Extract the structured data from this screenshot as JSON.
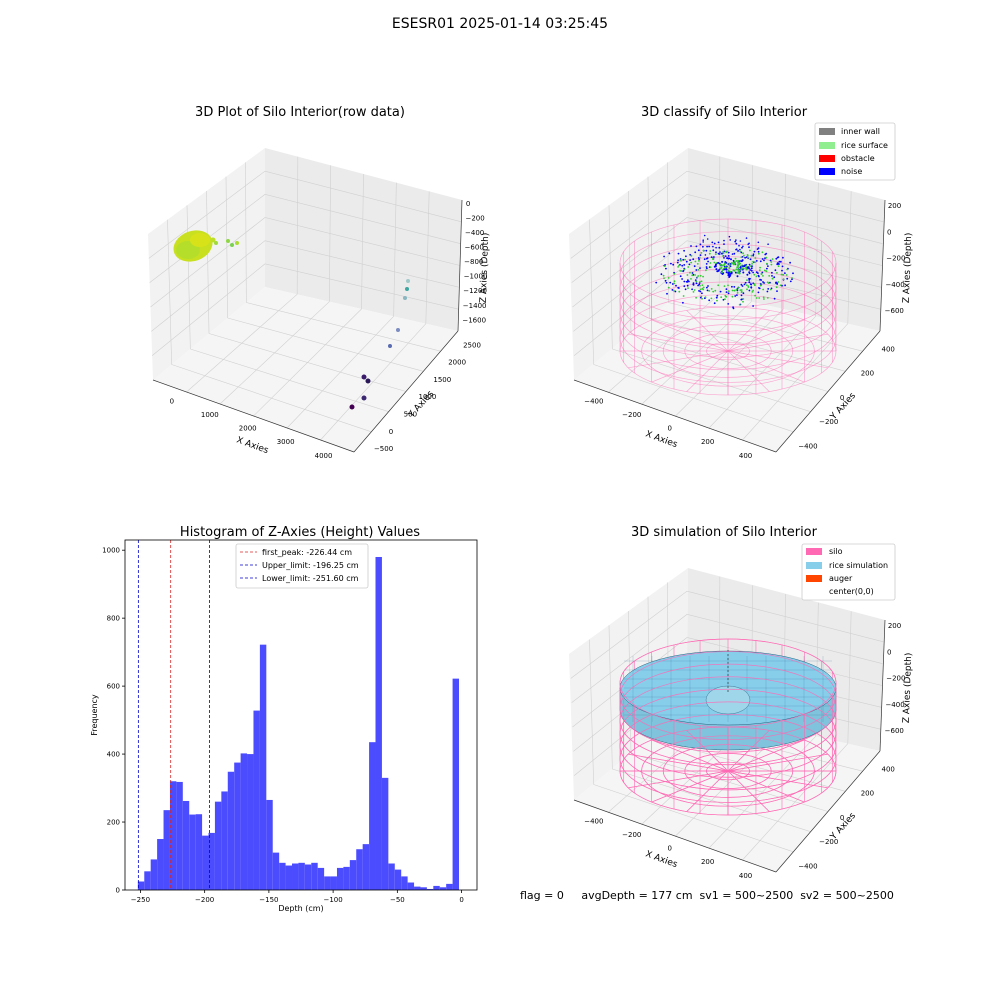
{
  "suptitle": "ESESR01 2025-01-14 03:25:45",
  "footer": "flag = 0     avgDepth = 177 cm  sv1 = 500~2500  sv2 = 500~2500",
  "colors": {
    "hist_bar": "#4c4cff",
    "first_peak": "#d62728",
    "limit": "#0000cc",
    "inner_wall": "#808080",
    "rice_surface": "#90ee90",
    "obstacle": "#ff0000",
    "noise": "#0000ff",
    "silo": "#ff69b4",
    "rice_simulation": "#87ceeb",
    "auger": "#ff4500"
  },
  "chart_data": [
    {
      "type": "scatter",
      "subtype": "3d",
      "title": "3D Plot of Silo Interior(row data)",
      "xlabel": "X Axies",
      "ylabel": "Y Axies",
      "zlabel": "Z Axies (Depth)",
      "x_ticks": [
        "0",
        "1000",
        "2000",
        "3000",
        "4000"
      ],
      "y_ticks": [
        "−500",
        "0",
        "500",
        "1000",
        "1500",
        "2000",
        "2500"
      ],
      "z_ticks": [
        "0",
        "−200",
        "−400",
        "−600",
        "−800",
        "−1000",
        "−1200",
        "−1400",
        "−1600"
      ],
      "colormap": "viridis"
    },
    {
      "type": "scatter",
      "subtype": "3d",
      "title": "3D classify of Silo Interior",
      "xlabel": "X Axies",
      "ylabel": "Y Axies",
      "zlabel": "Z Axies (Depth)",
      "x_ticks": [
        "−400",
        "−200",
        "0",
        "200",
        "400"
      ],
      "y_ticks": [
        "−400",
        "−200",
        "0",
        "200",
        "400"
      ],
      "z_ticks": [
        "200",
        "0",
        "−200",
        "−400",
        "−600"
      ],
      "legend": [
        "inner wall",
        "rice surface",
        "obstacle",
        "noise"
      ],
      "legend_position": "top-right"
    },
    {
      "type": "bar",
      "title": "Histogram of Z-Axies (Height) Values",
      "xlabel": "Depth (cm)",
      "ylabel": "Frequency",
      "xlim": [
        -262,
        12
      ],
      "ylim": [
        0,
        1030
      ],
      "x_ticks": [
        -250,
        -200,
        -150,
        -100,
        -50,
        0
      ],
      "y_ticks": [
        0,
        200,
        400,
        600,
        800,
        1000
      ],
      "bin_start": -252,
      "bin_width": 5,
      "values": [
        25,
        55,
        90,
        150,
        235,
        320,
        318,
        262,
        222,
        223,
        160,
        168,
        260,
        290,
        348,
        375,
        402,
        400,
        528,
        722,
        265,
        110,
        80,
        72,
        78,
        80,
        75,
        80,
        65,
        40,
        40,
        65,
        68,
        88,
        120,
        135,
        435,
        980,
        330,
        78,
        60,
        40,
        22,
        10,
        8,
        3,
        12,
        8,
        18,
        622
      ],
      "vlines": [
        {
          "label": "first_peak: -226.44 cm",
          "x": -226.44,
          "color": "red"
        },
        {
          "label": "Upper_limit: -196.25 cm",
          "x": -196.25,
          "color": "blue"
        },
        {
          "label": "Lower_limit: -251.60 cm",
          "x": -251.6,
          "color": "blue"
        }
      ],
      "legend_position": "top-center"
    },
    {
      "type": "area",
      "subtype": "3d-surface",
      "title": "3D simulation of Silo Interior",
      "xlabel": "X Axies",
      "ylabel": "Y Axies",
      "zlabel": "Z Axies (Depth)",
      "x_ticks": [
        "−400",
        "−200",
        "0",
        "200",
        "400"
      ],
      "y_ticks": [
        "−400",
        "−200",
        "0",
        "200",
        "400"
      ],
      "z_ticks": [
        "200",
        "0",
        "−200",
        "−400",
        "−600"
      ],
      "legend": [
        "silo",
        "rice simulation",
        "auger",
        "center(0,0)"
      ],
      "legend_position": "top-right"
    }
  ]
}
